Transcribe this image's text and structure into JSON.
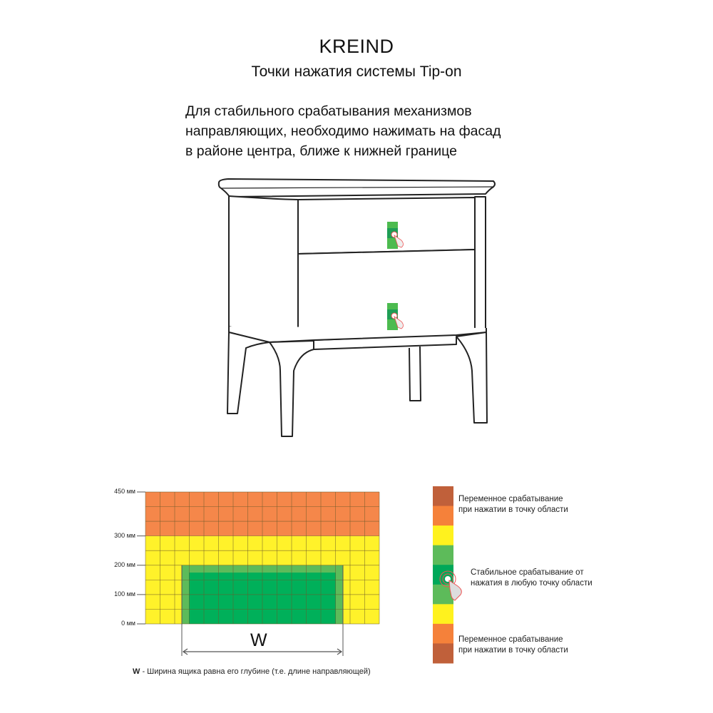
{
  "header": {
    "brand": "KREIND",
    "subtitle": "Точки нажатия системы Tip-on"
  },
  "instructions": [
    "Для стабильного срабатывания механизмов",
    "направляющих, необходимо нажимать на фасад",
    "в районе центра, ближе к нижней границе"
  ],
  "diagram": {
    "icons": [
      "nightstand-drawing",
      "press-hand-icon"
    ],
    "grid": {
      "y_ticks": [
        "450 мм",
        "300 мм",
        "200 мм",
        "100 мм",
        "0 мм"
      ],
      "y_tick_values": [
        450,
        300,
        200,
        100,
        0
      ],
      "columns": 16,
      "rows": 9,
      "zones": [
        {
          "zone": "variable",
          "from_mm": 300,
          "to_mm": 450,
          "color": "#F5874A"
        },
        {
          "zone": "transition",
          "from_mm": 0,
          "to_mm": 300,
          "color": "#FFF22A"
        },
        {
          "zone": "stable-edge",
          "from_mm": 0,
          "to_mm": 200,
          "color": "#5DBB5A"
        },
        {
          "zone": "stable",
          "from_mm": 0,
          "to_mm": 175,
          "color": "#00B05A"
        }
      ],
      "width_symbol": "W",
      "note_symbol": "W",
      "note_text": " - Ширина ящика равна его глубине (т.е. длине направляющей)"
    },
    "legend": {
      "segments": [
        "#C0603A",
        "#F5813A",
        "#FFF21E",
        "#5DBB5A",
        "#00A859",
        "#5DBB5A",
        "#FFF21E",
        "#F5813A",
        "#C0603A"
      ],
      "top_label": [
        "Переменное срабатывание",
        "при нажатии в точку области"
      ],
      "middle_label": [
        "Стабильное срабатывание от",
        "нажатия в любую точку области"
      ],
      "bottom_label": [
        "Переменное срабатывание",
        "при нажатии в точку области"
      ]
    }
  }
}
